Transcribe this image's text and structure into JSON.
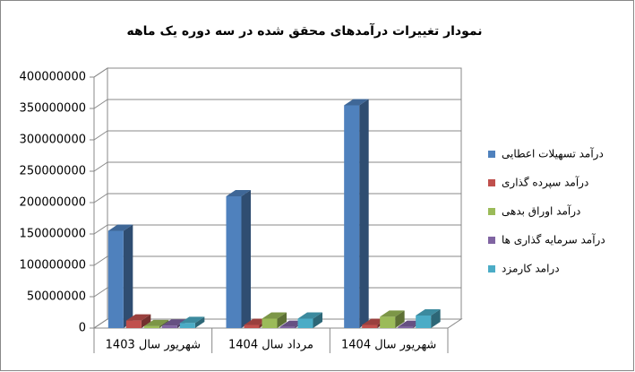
{
  "chart_data": {
    "type": "bar3d",
    "title": "نمودار تغییرات درآمدهای محقق شده در سه دوره یک ماهه",
    "categories": [
      "شهریور سال 1403",
      "مرداد سال 1404",
      "شهریور سال 1404"
    ],
    "series": [
      {
        "name": "درآمد تسهیلات اعطایی",
        "color": "#4f81bd",
        "values": [
          155000000,
          210000000,
          355000000
        ]
      },
      {
        "name": "درآمد سپرده گذاری",
        "color": "#c0504d",
        "values": [
          12000000,
          5000000,
          5000000
        ]
      },
      {
        "name": "درآمد اوراق بدهی",
        "color": "#9bbb59",
        "values": [
          3000000,
          15000000,
          18000000
        ]
      },
      {
        "name": "درآمد سرمایه گذاری ها",
        "color": "#8064a2",
        "values": [
          4000000,
          2000000,
          2000000
        ]
      },
      {
        "name": "درامد کارمزد",
        "color": "#4bacc6",
        "values": [
          8000000,
          15000000,
          20000000
        ]
      }
    ],
    "ylim": [
      0,
      400000000
    ],
    "yticks": [
      0,
      50000000,
      100000000,
      150000000,
      200000000,
      250000000,
      300000000,
      350000000,
      400000000
    ],
    "grid": true,
    "legend": "right"
  }
}
